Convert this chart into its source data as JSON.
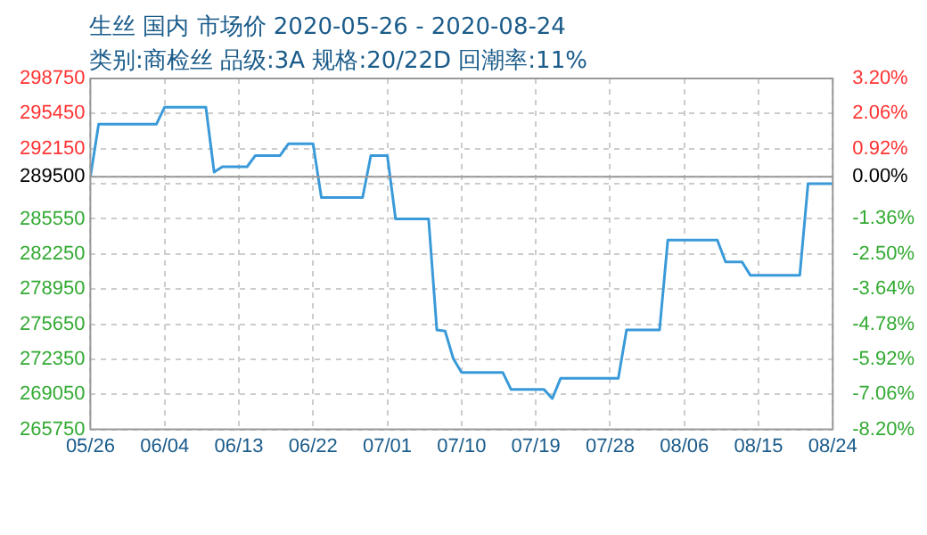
{
  "chart_data": {
    "type": "line",
    "title": "生丝 国内 市场价 2020-05-26 - 2020-08-24",
    "subtitle": "类别:商检丝 品级:3A 规格:20/22D 回潮率:11%",
    "x": [
      "2020-05-26",
      "2020-05-27",
      "2020-06-03",
      "2020-06-04",
      "2020-06-09",
      "2020-06-10",
      "2020-06-11",
      "2020-06-14",
      "2020-06-15",
      "2020-06-18",
      "2020-06-19",
      "2020-06-22",
      "2020-06-23",
      "2020-06-28",
      "2020-06-29",
      "2020-07-01",
      "2020-07-02",
      "2020-07-06",
      "2020-07-07",
      "2020-07-08",
      "2020-07-09",
      "2020-07-10",
      "2020-07-15",
      "2020-07-16",
      "2020-07-20",
      "2020-07-21",
      "2020-07-22",
      "2020-07-29",
      "2020-07-30",
      "2020-08-03",
      "2020-08-04",
      "2020-08-10",
      "2020-08-11",
      "2020-08-13",
      "2020-08-14",
      "2020-08-20",
      "2020-08-21",
      "2020-08-24"
    ],
    "series": [
      {
        "color": "#3a9ad9",
        "values": [
          289500,
          294450,
          294450,
          296050,
          296050,
          289950,
          290450,
          290450,
          291500,
          291500,
          292600,
          292600,
          287550,
          287550,
          291500,
          291500,
          285550,
          285550,
          275100,
          275000,
          272400,
          271100,
          271100,
          269500,
          269500,
          268650,
          270550,
          270550,
          275100,
          275100,
          283550,
          283550,
          281500,
          281500,
          280250,
          280250,
          288850,
          288850
        ]
      }
    ],
    "xlim": [
      "2020-05-26",
      "2020-08-24"
    ],
    "xticks": [
      {
        "value": "2020-05-26",
        "label": "05/26"
      },
      {
        "value": "2020-06-04",
        "label": "06/04"
      },
      {
        "value": "2020-06-13",
        "label": "06/13"
      },
      {
        "value": "2020-06-22",
        "label": "06/22"
      },
      {
        "value": "2020-07-01",
        "label": "07/01"
      },
      {
        "value": "2020-07-10",
        "label": "07/10"
      },
      {
        "value": "2020-07-19",
        "label": "07/19"
      },
      {
        "value": "2020-07-28",
        "label": "07/28"
      },
      {
        "value": "2020-08-06",
        "label": "08/06"
      },
      {
        "value": "2020-08-15",
        "label": "08/15"
      },
      {
        "value": "2020-08-24",
        "label": "08/24"
      }
    ],
    "ylim": [
      265750,
      298750
    ],
    "yticks": [
      265750,
      269050,
      272350,
      275650,
      278950,
      282250,
      285550,
      {
        "value": 288850,
        "label": null
      },
      289500,
      292150,
      295450,
      298750
    ],
    "y2lim": [
      -8.204,
      3.195
    ],
    "y2ticks": [
      {
        "value": -8.204,
        "label": "-8.20%"
      },
      {
        "value": -7.064,
        "label": "-7.06%"
      },
      {
        "value": -5.924,
        "label": "-5.92%"
      },
      {
        "value": -4.784,
        "label": "-4.78%"
      },
      {
        "value": -3.644,
        "label": "-3.64%"
      },
      {
        "value": -2.504,
        "label": "-2.50%"
      },
      {
        "value": -1.364,
        "label": "-1.36%"
      },
      {
        "value": 0,
        "label": "0.00%"
      },
      {
        "value": 0.915,
        "label": "0.92%"
      },
      {
        "value": 2.055,
        "label": "2.06%"
      },
      {
        "value": 3.195,
        "label": "3.20%"
      }
    ],
    "ref_lines": [
      {
        "axis": "y",
        "value": 289500,
        "color": "#999999"
      }
    ],
    "grid": true,
    "legend": false,
    "marker": "none",
    "line_style": "solid"
  }
}
